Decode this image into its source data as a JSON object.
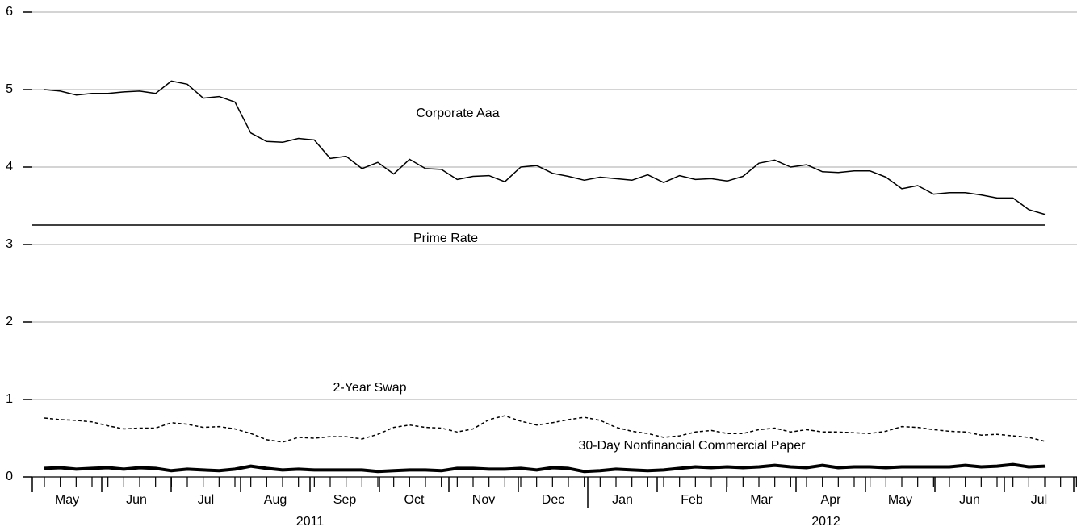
{
  "chart_data": {
    "type": "line",
    "months": [
      "May",
      "Jun",
      "Jul",
      "Aug",
      "Sep",
      "Oct",
      "Nov",
      "Dec",
      "Jan",
      "Feb",
      "Mar",
      "Apr",
      "May",
      "Jun",
      "Jul"
    ],
    "years": [
      "2011",
      "2012"
    ],
    "ylim": [
      0,
      6
    ],
    "yticks": [
      0,
      1,
      2,
      3,
      4,
      5,
      6
    ],
    "grid": true,
    "series": [
      {
        "name": "Corporate Aaa",
        "color": "#000000",
        "style": "solid",
        "values": [
          5.0,
          4.98,
          4.93,
          4.95,
          4.95,
          4.97,
          4.98,
          4.95,
          5.11,
          5.07,
          4.89,
          4.91,
          4.84,
          4.44,
          4.33,
          4.32,
          4.37,
          4.35,
          4.11,
          4.14,
          3.98,
          4.06,
          3.91,
          4.1,
          3.98,
          3.97,
          3.84,
          3.88,
          3.89,
          3.81,
          4.0,
          4.02,
          3.92,
          3.88,
          3.83,
          3.87,
          3.85,
          3.83,
          3.9,
          3.8,
          3.89,
          3.84,
          3.85,
          3.82,
          3.88,
          4.05,
          4.09,
          4.0,
          4.03,
          3.94,
          3.93,
          3.95,
          3.95,
          3.87,
          3.72,
          3.76,
          3.65,
          3.67,
          3.67,
          3.64,
          3.6,
          3.6,
          3.45,
          3.39
        ]
      },
      {
        "name": "Prime Rate",
        "color": "#000000",
        "style": "solid",
        "values": [
          3.25,
          3.25,
          3.25,
          3.25,
          3.25,
          3.25,
          3.25,
          3.25,
          3.25,
          3.25,
          3.25,
          3.25,
          3.25,
          3.25,
          3.25,
          3.25,
          3.25,
          3.25,
          3.25,
          3.25,
          3.25,
          3.25,
          3.25,
          3.25,
          3.25,
          3.25,
          3.25,
          3.25,
          3.25,
          3.25,
          3.25,
          3.25,
          3.25,
          3.25,
          3.25,
          3.25,
          3.25,
          3.25,
          3.25,
          3.25,
          3.25,
          3.25,
          3.25,
          3.25,
          3.25,
          3.25,
          3.25,
          3.25,
          3.25,
          3.25,
          3.25,
          3.25,
          3.25,
          3.25,
          3.25,
          3.25,
          3.25,
          3.25,
          3.25,
          3.25,
          3.25,
          3.25,
          3.25,
          3.25
        ]
      },
      {
        "name": "2-Year Swap",
        "color": "#000000",
        "style": "dashed",
        "values": [
          0.76,
          0.74,
          0.73,
          0.71,
          0.66,
          0.62,
          0.63,
          0.63,
          0.7,
          0.68,
          0.64,
          0.65,
          0.62,
          0.56,
          0.48,
          0.45,
          0.51,
          0.5,
          0.52,
          0.52,
          0.49,
          0.55,
          0.64,
          0.67,
          0.64,
          0.63,
          0.58,
          0.62,
          0.74,
          0.79,
          0.72,
          0.67,
          0.7,
          0.74,
          0.77,
          0.73,
          0.64,
          0.59,
          0.56,
          0.51,
          0.53,
          0.58,
          0.6,
          0.56,
          0.56,
          0.61,
          0.63,
          0.58,
          0.61,
          0.58,
          0.58,
          0.57,
          0.56,
          0.59,
          0.65,
          0.64,
          0.61,
          0.59,
          0.58,
          0.54,
          0.55,
          0.53,
          0.51,
          0.46
        ]
      },
      {
        "name": "30-Day Nonfinancial Commercial Paper",
        "color": "#000000",
        "style": "thick",
        "values": [
          0.11,
          0.12,
          0.1,
          0.11,
          0.12,
          0.1,
          0.12,
          0.11,
          0.08,
          0.1,
          0.09,
          0.08,
          0.1,
          0.14,
          0.11,
          0.09,
          0.1,
          0.09,
          0.09,
          0.09,
          0.09,
          0.07,
          0.08,
          0.09,
          0.09,
          0.08,
          0.11,
          0.11,
          0.1,
          0.1,
          0.11,
          0.09,
          0.12,
          0.11,
          0.07,
          0.08,
          0.1,
          0.09,
          0.08,
          0.09,
          0.11,
          0.13,
          0.12,
          0.13,
          0.12,
          0.13,
          0.15,
          0.13,
          0.12,
          0.15,
          0.12,
          0.13,
          0.13,
          0.12,
          0.13,
          0.13,
          0.13,
          0.13,
          0.15,
          0.13,
          0.14,
          0.16,
          0.13,
          0.14
        ]
      }
    ]
  }
}
